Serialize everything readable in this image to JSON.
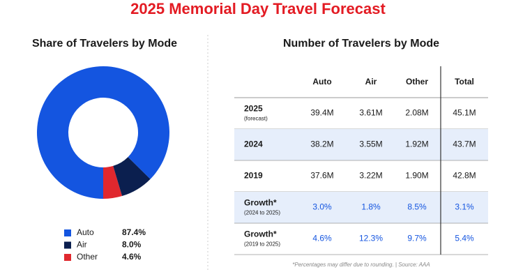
{
  "title": "2025 Memorial Day Travel Forecast",
  "chart_data": {
    "type": "pie",
    "donut": true,
    "title": "Share of Travelers by Mode",
    "categories": [
      "Auto",
      "Air",
      "Other"
    ],
    "values": [
      87.4,
      8.0,
      4.6
    ],
    "value_labels": [
      "87.4%",
      "8.0%",
      "4.6%"
    ],
    "colors": [
      "#1455e0",
      "#0b1f4f",
      "#e0282e"
    ]
  },
  "table": {
    "title": "Number of Travelers by Mode",
    "columns": [
      "Auto",
      "Air",
      "Other",
      "Total"
    ],
    "rows": [
      {
        "label": "2025",
        "sublabel": "(forecast)",
        "cells": [
          "39.4M",
          "3.61M",
          "2.08M",
          "45.1M"
        ]
      },
      {
        "label": "2024",
        "cells": [
          "38.2M",
          "3.55M",
          "1.92M",
          "43.7M"
        ]
      },
      {
        "label": "2019",
        "cells": [
          "37.6M",
          "3.22M",
          "1.90M",
          "42.8M"
        ]
      },
      {
        "label": "Growth*",
        "sublabel": "(2024 to 2025)",
        "cells": [
          "3.0%",
          "1.8%",
          "8.5%",
          "3.1%"
        ]
      },
      {
        "label": "Growth*",
        "sublabel": "(2019 to 2025)",
        "cells": [
          "4.6%",
          "12.3%",
          "9.7%",
          "5.4%"
        ]
      }
    ]
  },
  "footnote": "*Percentages may differ due to rounding. | Source: AAA"
}
